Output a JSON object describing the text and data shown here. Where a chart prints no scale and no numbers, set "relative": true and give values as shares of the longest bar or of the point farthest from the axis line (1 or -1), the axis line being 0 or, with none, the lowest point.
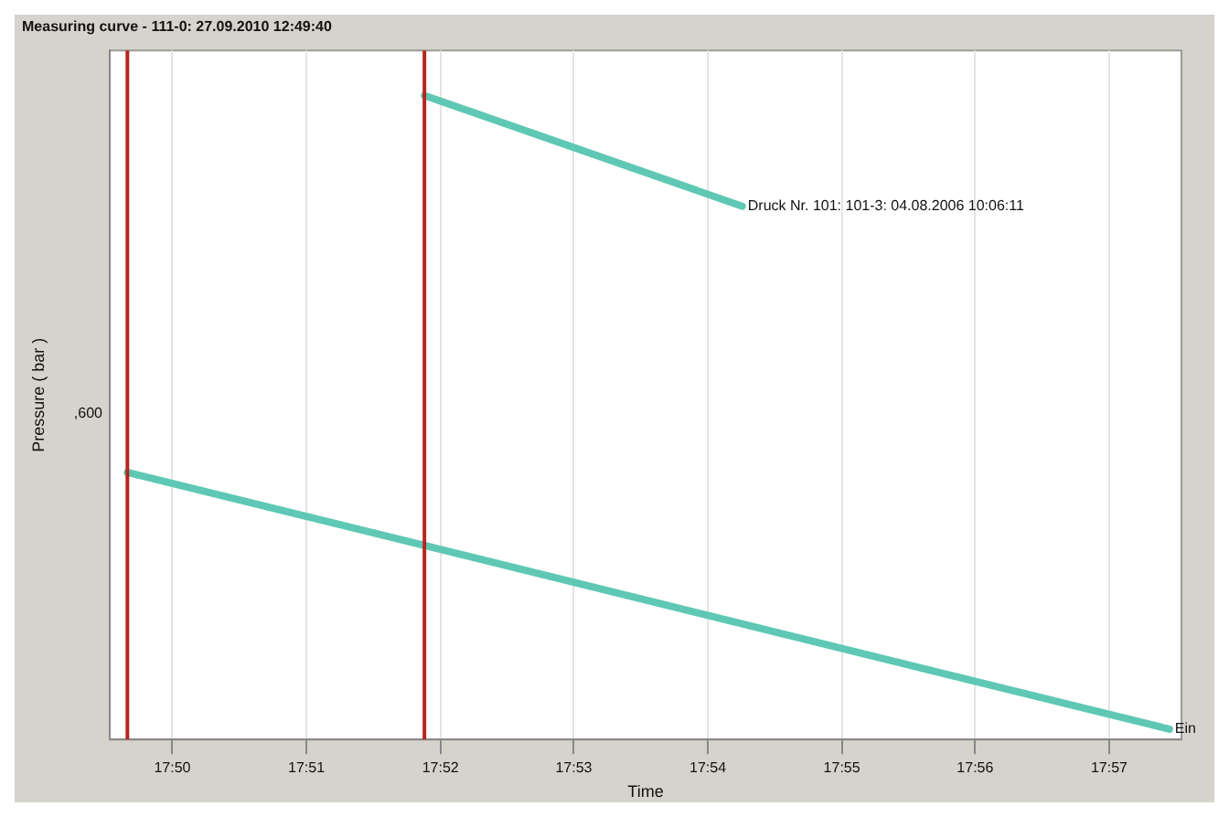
{
  "chart_data": {
    "type": "line",
    "title": "Measuring curve - 111-0: 27.09.2010 12:49:40",
    "xlabel": "Time",
    "ylabel": "Pressure ( bar )",
    "relative": true,
    "xlim": [
      17.8255,
      17.959
    ],
    "xticks": [
      {
        "value": 17.8333,
        "label": "17:50"
      },
      {
        "value": 17.85,
        "label": "17:51"
      },
      {
        "value": 17.8667,
        "label": "17:52"
      },
      {
        "value": 17.8833,
        "label": "17:53"
      },
      {
        "value": 17.9,
        "label": "17:54"
      },
      {
        "value": 17.9167,
        "label": "17:55"
      },
      {
        "value": 17.9333,
        "label": "17:56"
      },
      {
        "value": 17.95,
        "label": "17:57"
      }
    ],
    "series": [
      {
        "color": "#5fc8b4",
        "x": [
          17.8277,
          17.9575
        ],
        "values": [
          0.415,
          0.016
        ]
      },
      {
        "color": "#5fc8b4",
        "x": [
          17.8647,
          17.9043
        ],
        "values": [
          1,
          0.828
        ]
      }
    ],
    "ref_lines": [
      {
        "axis": "x",
        "value": 17.8277,
        "color": "#b5261e"
      },
      {
        "axis": "x",
        "value": 17.8647,
        "color": "#b5261e"
      }
    ],
    "annotations": [
      ",600",
      {
        "text": "Druck Nr. 101: 101-3: 04.08.2006 10:06:11",
        "x": 17.9043,
        "y": 0.828
      },
      {
        "text": "Ein",
        "x": 17.9575,
        "y": 0.016
      }
    ],
    "grid": "x",
    "legend": false,
    "marker": "none",
    "line_style": "solid"
  }
}
